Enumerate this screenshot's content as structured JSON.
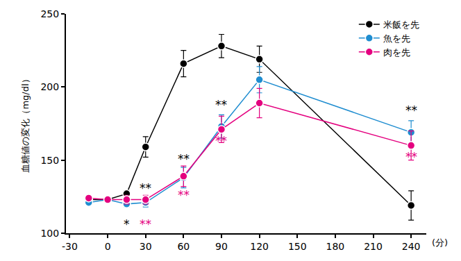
{
  "chart_data": {
    "type": "line",
    "y_label": "血糖値の変化（mg/dl）",
    "x_label": "(分)",
    "x": [
      -15,
      0,
      15,
      30,
      60,
      90,
      120,
      240
    ],
    "series": [
      {
        "name": "米飯を先",
        "color": "#000000",
        "marker": "circle",
        "line_style": "solid",
        "values": [
          123,
          123,
          127,
          159,
          216,
          228,
          219,
          119
        ],
        "errors": [
          1,
          1,
          2,
          7,
          9,
          8,
          9,
          10
        ]
      },
      {
        "name": "魚を先",
        "color": "#1f8dd0",
        "marker": "circle",
        "line_style": "solid",
        "values": [
          121,
          123,
          120,
          121,
          138,
          173,
          205,
          169
        ],
        "errors": [
          1,
          1,
          2,
          3,
          7,
          8,
          9,
          8
        ]
      },
      {
        "name": "肉を先",
        "color": "#e4007f",
        "marker": "circle",
        "line_style": "solid",
        "values": [
          124,
          123,
          123,
          123,
          139,
          171,
          189,
          160
        ],
        "errors": [
          1,
          1,
          3,
          3,
          7,
          9,
          10,
          10
        ]
      }
    ],
    "annotations": [
      {
        "text": "**",
        "x": 30,
        "y": 131,
        "color": "#000000"
      },
      {
        "text": "*",
        "x": 15,
        "y": 106,
        "color": "#000000"
      },
      {
        "text": "**",
        "x": 30,
        "y": 106,
        "color": "#e4007f"
      },
      {
        "text": "**",
        "x": 60,
        "y": 151,
        "color": "#000000"
      },
      {
        "text": "**",
        "x": 60,
        "y": 126,
        "color": "#e4007f"
      },
      {
        "text": "**",
        "x": 90,
        "y": 188,
        "color": "#000000"
      },
      {
        "text": "**",
        "x": 90,
        "y": 163,
        "color": "#e4007f"
      },
      {
        "text": "**",
        "x": 240,
        "y": 184,
        "color": "#000000"
      },
      {
        "text": "**",
        "x": 240,
        "y": 152,
        "color": "#e4007f"
      }
    ],
    "xlim": [
      -33,
      252
    ],
    "xticks": [
      -30,
      0,
      30,
      60,
      90,
      120,
      150,
      180,
      210,
      240
    ],
    "ylim": [
      100,
      250
    ],
    "yticks": [
      100,
      150,
      200,
      250
    ],
    "grid": false,
    "legend": "upper right"
  }
}
